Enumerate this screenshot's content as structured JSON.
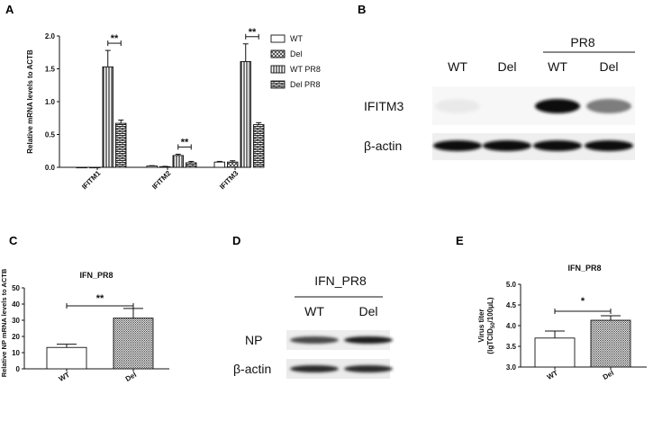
{
  "panel_labels": [
    "A",
    "B",
    "C",
    "D",
    "E"
  ],
  "chart_data": [
    {
      "id": "A",
      "type": "bar",
      "title": "",
      "ylabel": "Relative mRNA levels to ACTB",
      "xlabel": "",
      "ylim": [
        0,
        2.0
      ],
      "yticks": [
        "0.0",
        "0.5",
        "1.0",
        "1.5",
        "2.0"
      ],
      "categories": [
        "IFITM1",
        "IFITM2",
        "IFITM3"
      ],
      "legend_position": "top-right",
      "series": [
        {
          "name": "WT",
          "pattern": "white",
          "values": [
            0.0,
            0.02,
            0.08
          ],
          "errors": [
            0.0,
            0.005,
            0.01
          ]
        },
        {
          "name": "Del",
          "pattern": "crosshatch",
          "values": [
            0.0,
            0.01,
            0.08
          ],
          "errors": [
            0.0,
            0.005,
            0.02
          ]
        },
        {
          "name": "WT PR8",
          "pattern": "vertical-lines",
          "values": [
            1.53,
            0.18,
            1.61
          ],
          "errors": [
            0.25,
            0.02,
            0.27
          ]
        },
        {
          "name": "Del PR8",
          "pattern": "brick",
          "values": [
            0.67,
            0.07,
            0.65
          ],
          "errors": [
            0.05,
            0.02,
            0.03
          ]
        }
      ],
      "significance": [
        {
          "category": "IFITM1",
          "label": "**"
        },
        {
          "category": "IFITM2",
          "label": "**"
        },
        {
          "category": "IFITM3",
          "label": "**"
        }
      ]
    },
    {
      "id": "C",
      "type": "bar",
      "title": "IFN_PR8",
      "ylabel": "Relative NP mRNA levels to ACTB",
      "xlabel": "",
      "ylim": [
        0,
        50
      ],
      "yticks": [
        "0",
        "10",
        "20",
        "30",
        "40",
        "50"
      ],
      "categories": [
        "WT",
        "Del"
      ],
      "patterns": [
        "white",
        "dotted"
      ],
      "values": [
        13.2,
        31.3
      ],
      "errors": [
        2.0,
        6.0
      ],
      "significance": [
        {
          "label": "**"
        }
      ]
    },
    {
      "id": "E",
      "type": "bar",
      "title": "IFN_PR8",
      "ylabel": "Virus titer",
      "ylabel2": "(lgTCID",
      "ylabel2_sub": "50",
      "ylabel2_end": "/100μL)",
      "xlabel": "",
      "ylim": [
        3.0,
        5.0
      ],
      "yticks": [
        "3.0",
        "3.5",
        "4.0",
        "4.5",
        "5.0"
      ],
      "categories": [
        "WT",
        "Del"
      ],
      "patterns": [
        "white",
        "dotted"
      ],
      "values": [
        3.7,
        4.13
      ],
      "errors": [
        0.17,
        0.11
      ],
      "significance": [
        {
          "label": "*"
        }
      ]
    }
  ],
  "blot_B": {
    "group_label": "PR8",
    "lanes": [
      "WT",
      "Del",
      "WT",
      "Del"
    ],
    "rows": [
      {
        "label": "IFITM3",
        "intensities": [
          0.05,
          0.0,
          1.0,
          0.55
        ]
      },
      {
        "label": "β-actin",
        "intensities": [
          1.0,
          1.0,
          1.0,
          1.0
        ]
      }
    ]
  },
  "blot_D": {
    "group_label": "IFN_PR8",
    "lanes": [
      "WT",
      "Del"
    ],
    "rows": [
      {
        "label": "NP",
        "intensities": [
          0.7,
          0.9
        ]
      },
      {
        "label": "β-actin",
        "intensities": [
          0.85,
          0.85
        ]
      }
    ]
  }
}
